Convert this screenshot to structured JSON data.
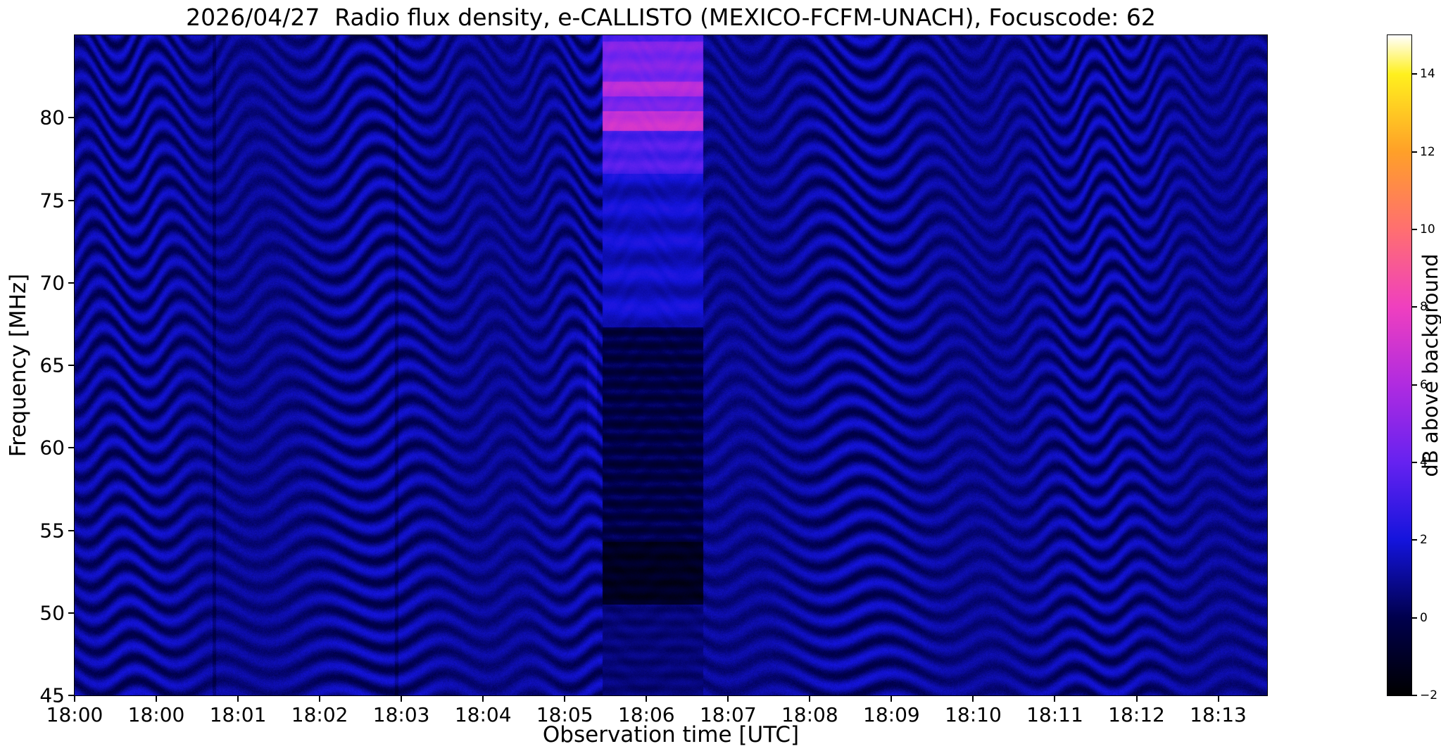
{
  "chart_data": {
    "type": "heatmap",
    "title": "2026/04/27  Radio flux density, e-CALLISTO (MEXICO-FCFM-UNACH), Focuscode: 62",
    "xlabel": "Observation time [UTC]",
    "ylabel": "Frequency [MHz]",
    "meta": {
      "date": "2026/04/27",
      "instrument": "e-CALLISTO",
      "station": "MEXICO-FCFM-UNACH",
      "focuscode": 62
    },
    "x_tick_labels": [
      "18:00",
      "18:00",
      "18:01",
      "18:02",
      "18:03",
      "18:04",
      "18:05",
      "18:06",
      "18:07",
      "18:08",
      "18:09",
      "18:10",
      "18:11",
      "18:12",
      "18:13"
    ],
    "y_tick_values": [
      45,
      50,
      55,
      60,
      65,
      70,
      75,
      80
    ],
    "freq_range_mhz": [
      45,
      85
    ],
    "time_span": "18:00-18:14 UTC",
    "colorbar": {
      "label": "dB above background",
      "tick_values": [
        -2,
        0,
        2,
        4,
        6,
        8,
        10,
        12,
        14
      ],
      "range_db": [
        -2,
        15
      ],
      "colormap_stops": [
        {
          "pos": 0.0,
          "color": "#000000"
        },
        {
          "pos": 0.118,
          "color": "#00004d"
        },
        {
          "pos": 0.235,
          "color": "#1414dc"
        },
        {
          "pos": 0.353,
          "color": "#6622f0"
        },
        {
          "pos": 0.471,
          "color": "#b02be0"
        },
        {
          "pos": 0.588,
          "color": "#ef3fbf"
        },
        {
          "pos": 0.706,
          "color": "#ff6f70"
        },
        {
          "pos": 0.824,
          "color": "#ffa028"
        },
        {
          "pos": 0.941,
          "color": "#fff01e"
        },
        {
          "pos": 1.0,
          "color": "#ffffff"
        }
      ]
    },
    "pattern": {
      "background_db": 0.9,
      "fringe_amp_db": 1.0,
      "fringe_spacing_mhz": 1.35,
      "wiggle_count": 13,
      "wiggle_amp_mhz": 1.1,
      "drift_amp_mhz": 2.0,
      "noise_db": 0.5,
      "dark_vertical_lines_t": [
        0.117,
        0.27
      ],
      "burst": {
        "t_start": 0.443,
        "t_end": 0.527,
        "description": "Bright emission ~18:06-18:07 UTC, 77-84 MHz, magenta bands near 80 and 82 MHz; absorption-like dark patch 50-67 MHz, darkest 52-54 MHz",
        "bands": [
          {
            "f0": 45.0,
            "f1": 50.5,
            "db": 0.6,
            "ripple_db": 0.2,
            "ripple_spacing_mhz": 0.8
          },
          {
            "f0": 50.5,
            "f1": 54.3,
            "db": -1.1,
            "ripple_db": 0.3,
            "ripple_spacing_mhz": 0.8
          },
          {
            "f0": 54.3,
            "f1": 67.3,
            "db": -0.2,
            "ripple_db": 0.5,
            "ripple_spacing_mhz": 0.8
          },
          {
            "f0": 67.3,
            "f1": 76.6,
            "db": 1.7,
            "ripple_db": 0.5,
            "ripple_spacing_mhz": 2.0
          },
          {
            "f0": 76.6,
            "f1": 79.2,
            "db": 3.4,
            "ripple_db": 0.4,
            "ripple_spacing_mhz": 1.2
          },
          {
            "f0": 79.2,
            "f1": 80.4,
            "db": 6.8,
            "ripple_db": 0.3,
            "ripple_spacing_mhz": 1.2
          },
          {
            "f0": 80.4,
            "f1": 81.3,
            "db": 4.4,
            "ripple_db": 0.3,
            "ripple_spacing_mhz": 1.2
          },
          {
            "f0": 81.3,
            "f1": 82.2,
            "db": 6.2,
            "ripple_db": 0.3,
            "ripple_spacing_mhz": 1.2
          },
          {
            "f0": 82.2,
            "f1": 84.6,
            "db": 4.6,
            "ripple_db": 0.4,
            "ripple_spacing_mhz": 1.2
          },
          {
            "f0": 84.6,
            "f1": 85.0,
            "db": 3.4,
            "ripple_db": 0.2,
            "ripple_spacing_mhz": 1.2
          }
        ]
      }
    }
  }
}
